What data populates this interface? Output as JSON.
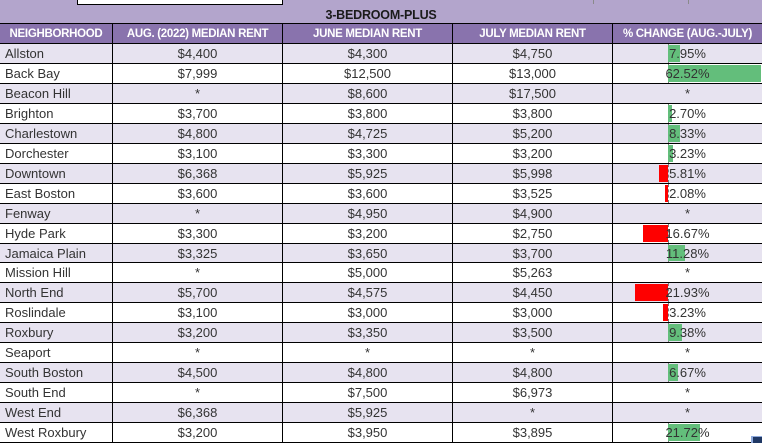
{
  "colors": {
    "band_bg": "#b3a5cc",
    "header_bg": "#8973ad",
    "header_text": "#ffffff",
    "stripe_bg": "#e7e3f0",
    "row_bg": "#ffffff",
    "grid_line": "#000000",
    "positive_bar": "#63be7b",
    "negative_bar": "#fe0000",
    "selection_handle": "#1f3864"
  },
  "chart_data": {
    "type": "table",
    "title": "3-BEDROOM-PLUS",
    "columns": [
      "NEIGHBORHOOD",
      "AUG. (2022) MEDIAN RENT",
      "JUNE MEDIAN RENT",
      "JULY MEDIAN RENT",
      "% CHANGE (AUG.-JULY)"
    ],
    "no_data_marker": "*",
    "bar_scale_max_pct": 62.52,
    "rows": [
      {
        "neighborhood": "Allston",
        "aug_2022_median_rent": "$4,400",
        "june_median_rent": "$4,300",
        "july_median_rent": "$4,750",
        "pct_change_display": "7.95%",
        "pct_change_value": 7.95
      },
      {
        "neighborhood": "Back Bay",
        "aug_2022_median_rent": "$7,999",
        "june_median_rent": "$12,500",
        "july_median_rent": "$13,000",
        "pct_change_display": "62.52%",
        "pct_change_value": 62.52
      },
      {
        "neighborhood": "Beacon Hill",
        "aug_2022_median_rent": "*",
        "june_median_rent": "$8,600",
        "july_median_rent": "$17,500",
        "pct_change_display": "*",
        "pct_change_value": null
      },
      {
        "neighborhood": "Brighton",
        "aug_2022_median_rent": "$3,700",
        "june_median_rent": "$3,800",
        "july_median_rent": "$3,800",
        "pct_change_display": "2.70%",
        "pct_change_value": 2.7
      },
      {
        "neighborhood": "Charlestown",
        "aug_2022_median_rent": "$4,800",
        "june_median_rent": "$4,725",
        "july_median_rent": "$5,200",
        "pct_change_display": "8.33%",
        "pct_change_value": 8.33
      },
      {
        "neighborhood": "Dorchester",
        "aug_2022_median_rent": "$3,100",
        "june_median_rent": "$3,300",
        "july_median_rent": "$3,200",
        "pct_change_display": "3.23%",
        "pct_change_value": 3.23
      },
      {
        "neighborhood": "Downtown",
        "aug_2022_median_rent": "$6,368",
        "june_median_rent": "$5,925",
        "july_median_rent": "$5,998",
        "pct_change_display": "5.81%",
        "pct_change_value": -5.81
      },
      {
        "neighborhood": "East Boston",
        "aug_2022_median_rent": "$3,600",
        "june_median_rent": "$3,600",
        "july_median_rent": "$3,525",
        "pct_change_display": "2.08%",
        "pct_change_value": -2.08
      },
      {
        "neighborhood": "Fenway",
        "aug_2022_median_rent": "*",
        "june_median_rent": "$4,950",
        "july_median_rent": "$4,900",
        "pct_change_display": "*",
        "pct_change_value": null
      },
      {
        "neighborhood": "Hyde Park",
        "aug_2022_median_rent": "$3,300",
        "june_median_rent": "$3,200",
        "july_median_rent": "$2,750",
        "pct_change_display": "16.67%",
        "pct_change_value": -16.67
      },
      {
        "neighborhood": "Jamaica Plain",
        "aug_2022_median_rent": "$3,325",
        "june_median_rent": "$3,650",
        "july_median_rent": "$3,700",
        "pct_change_display": "11.28%",
        "pct_change_value": 11.28
      },
      {
        "neighborhood": "Mission Hill",
        "aug_2022_median_rent": "*",
        "june_median_rent": "$5,000",
        "july_median_rent": "$5,263",
        "pct_change_display": "*",
        "pct_change_value": null
      },
      {
        "neighborhood": "North End",
        "aug_2022_median_rent": "$5,700",
        "june_median_rent": "$4,575",
        "july_median_rent": "$4,450",
        "pct_change_display": "21.93%",
        "pct_change_value": -21.93
      },
      {
        "neighborhood": "Roslindale",
        "aug_2022_median_rent": "$3,100",
        "june_median_rent": "$3,000",
        "july_median_rent": "$3,000",
        "pct_change_display": "3.23%",
        "pct_change_value": -3.23
      },
      {
        "neighborhood": "Roxbury",
        "aug_2022_median_rent": "$3,200",
        "june_median_rent": "$3,350",
        "july_median_rent": "$3,500",
        "pct_change_display": "9.38%",
        "pct_change_value": 9.38
      },
      {
        "neighborhood": "Seaport",
        "aug_2022_median_rent": "*",
        "june_median_rent": "*",
        "july_median_rent": "*",
        "pct_change_display": "*",
        "pct_change_value": null
      },
      {
        "neighborhood": "South Boston",
        "aug_2022_median_rent": "$4,500",
        "june_median_rent": "$4,800",
        "july_median_rent": "$4,800",
        "pct_change_display": "6.67%",
        "pct_change_value": 6.67
      },
      {
        "neighborhood": "South End",
        "aug_2022_median_rent": "*",
        "june_median_rent": "$7,500",
        "july_median_rent": "$6,973",
        "pct_change_display": "*",
        "pct_change_value": null
      },
      {
        "neighborhood": "West End",
        "aug_2022_median_rent": "$6,368",
        "june_median_rent": "$5,925",
        "july_median_rent": "*",
        "pct_change_display": "*",
        "pct_change_value": null
      },
      {
        "neighborhood": "West Roxbury",
        "aug_2022_median_rent": "$3,200",
        "june_median_rent": "$3,950",
        "july_median_rent": "$3,895",
        "pct_change_display": "21.72%",
        "pct_change_value": 21.72
      }
    ]
  }
}
